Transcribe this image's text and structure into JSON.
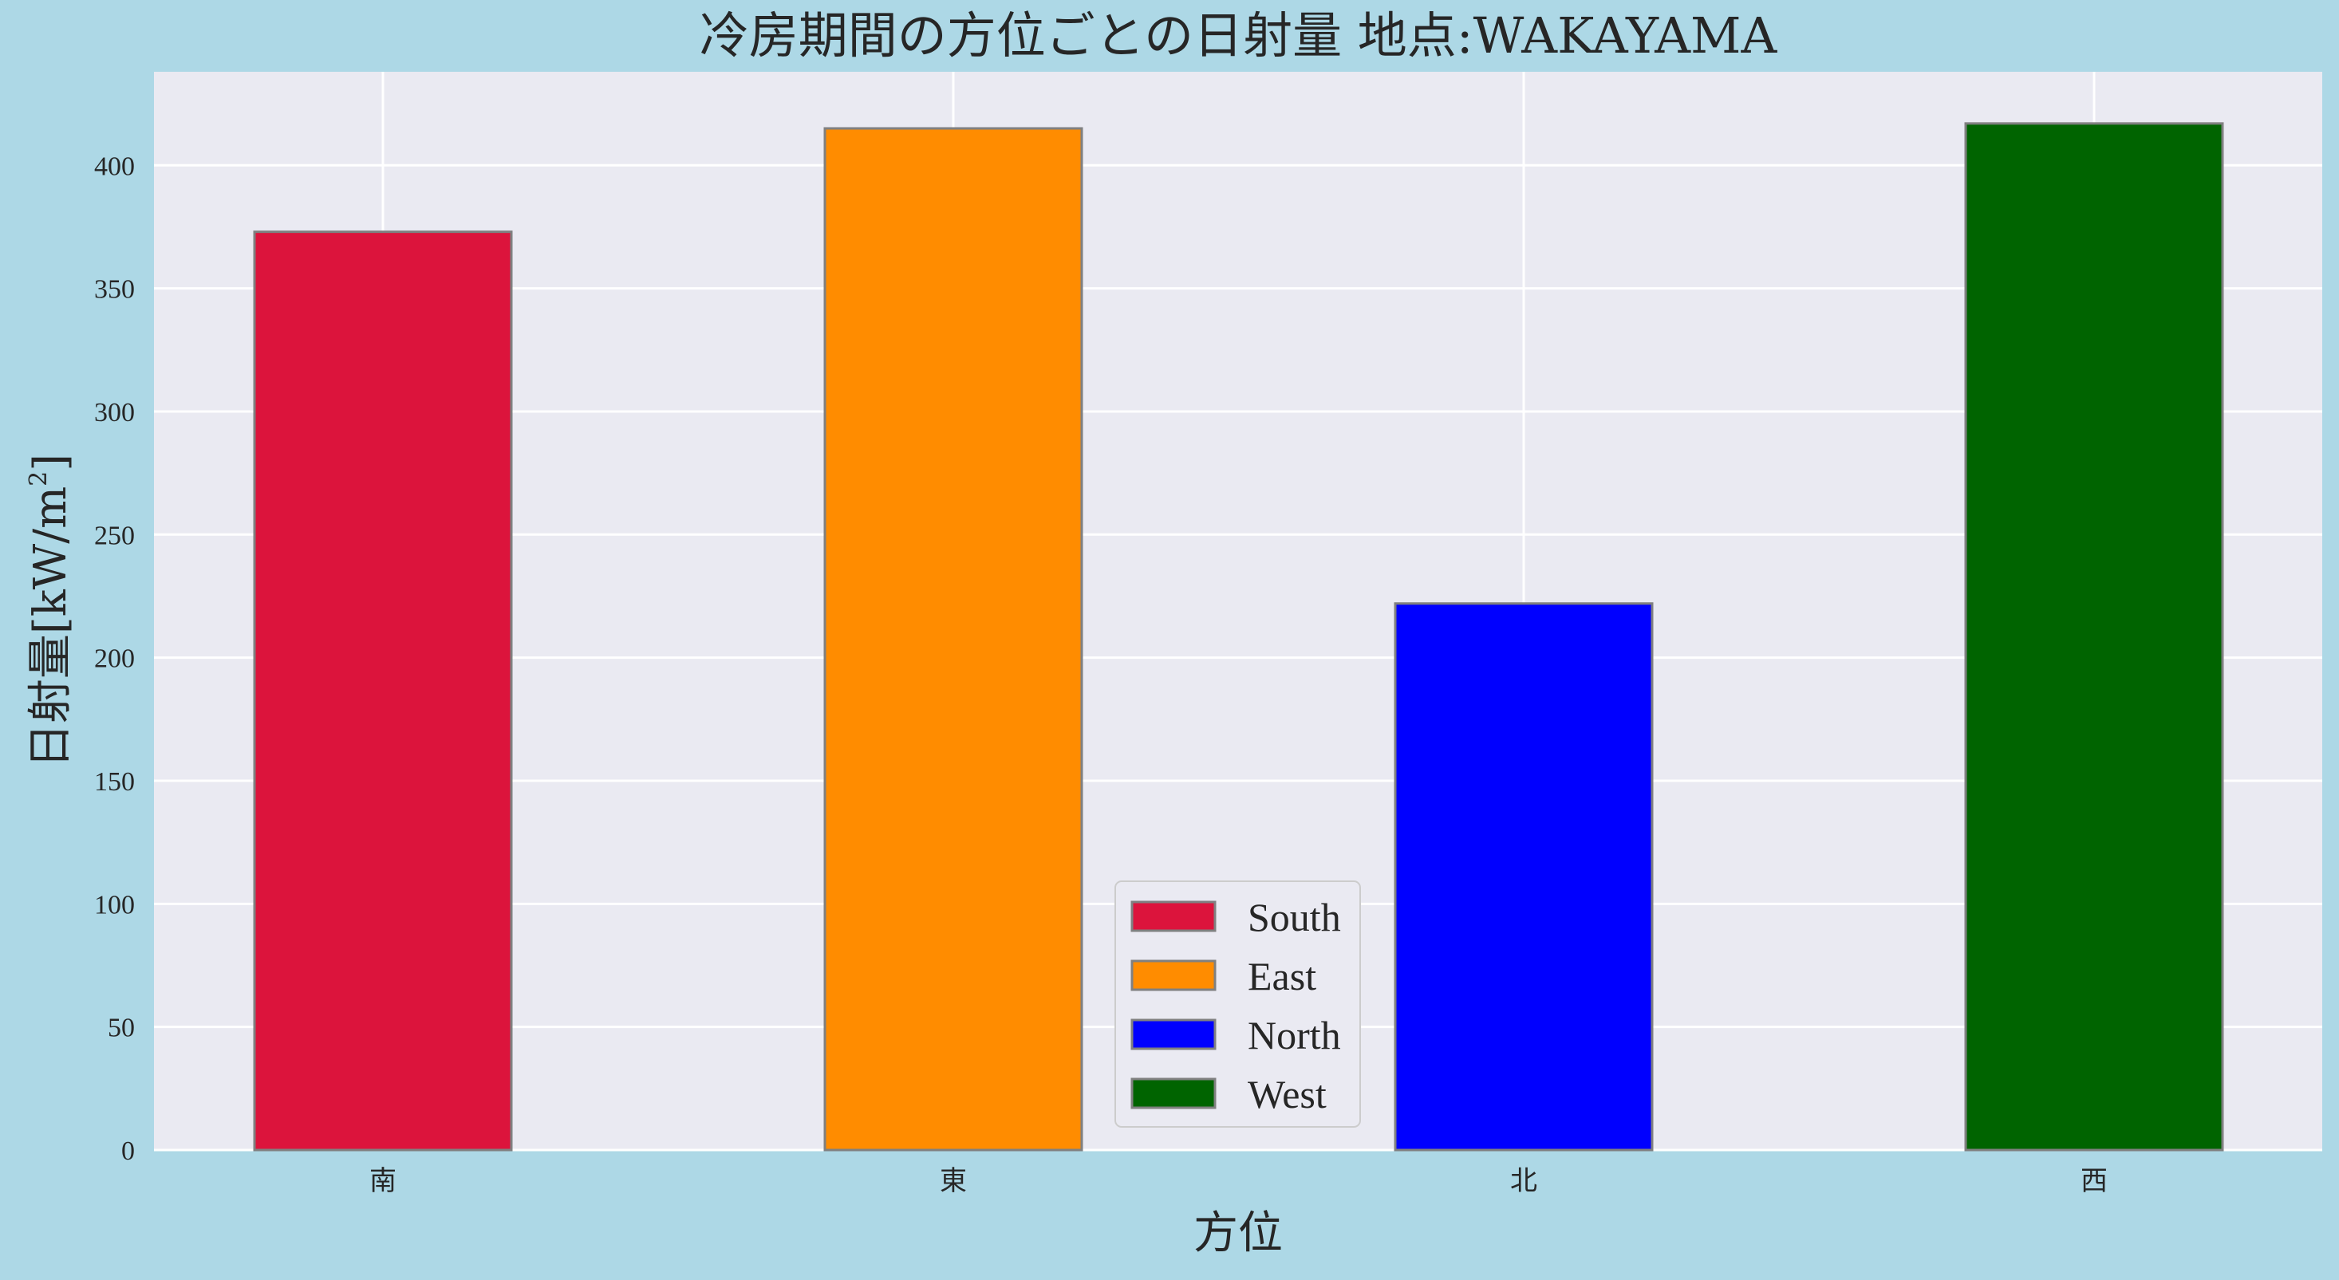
{
  "chart_data": {
    "type": "bar",
    "title": "冷房期間の方位ごとの日射量 地点:WAKAYAMA",
    "xlabel": "方位",
    "ylabel_main": "日射量[kW/m",
    "ylabel_sup": "2",
    "ylabel_close": "]",
    "categories": [
      "南",
      "東",
      "北",
      "西"
    ],
    "values": [
      373,
      415,
      222,
      417
    ],
    "colors": [
      "#dc143c",
      "#ff8c00",
      "#0000ff",
      "#006400"
    ],
    "ylim": [
      0,
      438
    ],
    "yticks": [
      0,
      50,
      100,
      150,
      200,
      250,
      300,
      350,
      400
    ],
    "grid": true,
    "legend": {
      "placement": "lower-center",
      "entries": [
        {
          "label": "South",
          "color": "#dc143c"
        },
        {
          "label": "East",
          "color": "#ff8c00"
        },
        {
          "label": "North",
          "color": "#0000ff"
        },
        {
          "label": "West",
          "color": "#006400"
        }
      ]
    },
    "colors_theme": {
      "figure_bg": "#add8e6",
      "plot_bg": "#eaeaf2",
      "grid": "#ffffff",
      "bar_edge": "#808080",
      "text": "#262626"
    }
  }
}
